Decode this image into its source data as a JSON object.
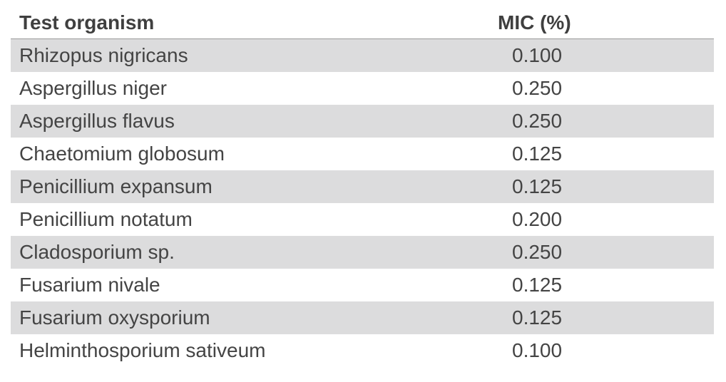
{
  "table": {
    "headers": [
      "Test organism",
      "MIC (%)"
    ],
    "rows": [
      [
        "Rhizopus nigricans",
        "0.100"
      ],
      [
        "Aspergillus niger",
        "0.250"
      ],
      [
        "Aspergillus flavus",
        "0.250"
      ],
      [
        "Chaetomium globosum",
        "0.125"
      ],
      [
        "Penicillium expansum",
        "0.125"
      ],
      [
        "Penicillium notatum",
        "0.200"
      ],
      [
        "Cladosporium sp.",
        "0.250"
      ],
      [
        "Fusarium nivale",
        "0.125"
      ],
      [
        "Fusarium oxysporium",
        "0.125"
      ],
      [
        "Helminthosporium sativeum",
        "0.100"
      ]
    ],
    "colors": {
      "shaded_row": "#dcdcdd",
      "text": "#444444",
      "header_rule": "#9a9a9a"
    }
  }
}
